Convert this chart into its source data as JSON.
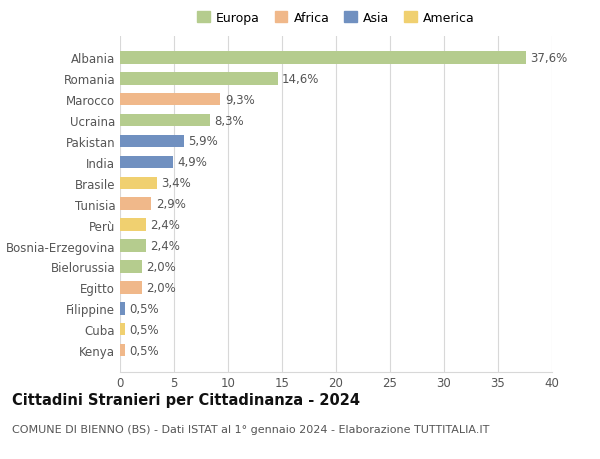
{
  "categories": [
    "Albania",
    "Romania",
    "Marocco",
    "Ucraina",
    "Pakistan",
    "India",
    "Brasile",
    "Tunisia",
    "Perù",
    "Bosnia-Erzegovina",
    "Bielorussia",
    "Egitto",
    "Filippine",
    "Cuba",
    "Kenya"
  ],
  "values": [
    37.6,
    14.6,
    9.3,
    8.3,
    5.9,
    4.9,
    3.4,
    2.9,
    2.4,
    2.4,
    2.0,
    2.0,
    0.5,
    0.5,
    0.5
  ],
  "labels": [
    "37,6%",
    "14,6%",
    "9,3%",
    "8,3%",
    "5,9%",
    "4,9%",
    "3,4%",
    "2,9%",
    "2,4%",
    "2,4%",
    "2,0%",
    "2,0%",
    "0,5%",
    "0,5%",
    "0,5%"
  ],
  "colors": [
    "#b5cc8e",
    "#b5cc8e",
    "#f0b88a",
    "#b5cc8e",
    "#7090c0",
    "#7090c0",
    "#f0d070",
    "#f0b88a",
    "#f0d070",
    "#b5cc8e",
    "#b5cc8e",
    "#f0b88a",
    "#7090c0",
    "#f0d070",
    "#f0b88a"
  ],
  "legend_labels": [
    "Europa",
    "Africa",
    "Asia",
    "America"
  ],
  "legend_colors": [
    "#b5cc8e",
    "#f0b88a",
    "#7090c0",
    "#f0d070"
  ],
  "title": "Cittadini Stranieri per Cittadinanza - 2024",
  "subtitle": "COMUNE DI BIENNO (BS) - Dati ISTAT al 1° gennaio 2024 - Elaborazione TUTTITALIA.IT",
  "xlim": [
    0,
    40
  ],
  "xticks": [
    0,
    5,
    10,
    15,
    20,
    25,
    30,
    35,
    40
  ],
  "background_color": "#ffffff",
  "grid_color": "#d8d8d8",
  "bar_height": 0.6,
  "label_fontsize": 8.5,
  "title_fontsize": 10.5,
  "subtitle_fontsize": 8.0,
  "legend_fontsize": 9.0
}
